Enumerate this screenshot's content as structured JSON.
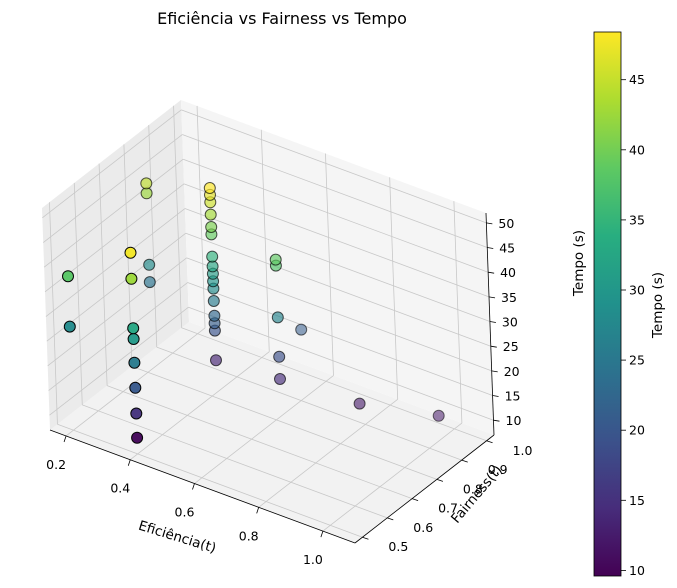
{
  "chart_data": {
    "type": "scatter",
    "projection": "3d",
    "title": "Eficiência vs Fairness vs Tempo",
    "xlabel": "Eficiência(t)",
    "ylabel": "Fairness(t)",
    "zlabel": "Tempo (s)",
    "xlim": [
      0.15,
      1.1
    ],
    "ylim": [
      0.47,
      1.03
    ],
    "zlim": [
      7,
      52
    ],
    "xticks": [
      "0.2",
      "0.4",
      "0.6",
      "0.8",
      "1.0"
    ],
    "yticks": [
      "0.5",
      "0.6",
      "0.7",
      "0.8",
      "0.9",
      "1.0"
    ],
    "zticks": [
      "10",
      "15",
      "20",
      "25",
      "30",
      "35",
      "40",
      "45",
      "50"
    ],
    "grid": true,
    "colormap": "viridis",
    "colorbar": {
      "label": "Tempo (s)",
      "range": [
        9.6,
        48.4
      ],
      "ticks": [
        "10",
        "15",
        "20",
        "25",
        "30",
        "35",
        "40",
        "45"
      ]
    },
    "points": [
      {
        "x": 0.4,
        "y": 0.5,
        "z": 10.3
      },
      {
        "x": 0.4,
        "y": 0.5,
        "z": 15.2
      },
      {
        "x": 0.4,
        "y": 0.5,
        "z": 20.4
      },
      {
        "x": 0.4,
        "y": 0.5,
        "z": 25.5
      },
      {
        "x": 0.4,
        "y": 0.5,
        "z": 30.3
      },
      {
        "x": 0.4,
        "y": 0.5,
        "z": 32.5
      },
      {
        "x": 0.4,
        "y": 0.5,
        "z": 42.5
      },
      {
        "x": 0.4,
        "y": 0.5,
        "z": 47.8
      },
      {
        "x": 0.2,
        "y": 0.5,
        "z": 28.0
      },
      {
        "x": 0.2,
        "y": 0.5,
        "z": 38.2
      },
      {
        "x": 0.4,
        "y": 0.82,
        "z": 13.5
      },
      {
        "x": 0.4,
        "y": 0.82,
        "z": 19.5
      },
      {
        "x": 0.4,
        "y": 0.82,
        "z": 21.0
      },
      {
        "x": 0.4,
        "y": 0.82,
        "z": 22.5
      },
      {
        "x": 0.4,
        "y": 0.82,
        "z": 25.5
      },
      {
        "x": 0.4,
        "y": 0.82,
        "z": 28.0
      },
      {
        "x": 0.4,
        "y": 0.82,
        "z": 29.5
      },
      {
        "x": 0.4,
        "y": 0.82,
        "z": 31.0
      },
      {
        "x": 0.4,
        "y": 0.82,
        "z": 32.5
      },
      {
        "x": 0.4,
        "y": 0.82,
        "z": 34.5
      },
      {
        "x": 0.4,
        "y": 0.82,
        "z": 39.0
      },
      {
        "x": 0.4,
        "y": 0.82,
        "z": 40.5
      },
      {
        "x": 0.4,
        "y": 0.82,
        "z": 43.0
      },
      {
        "x": 0.4,
        "y": 0.82,
        "z": 45.5
      },
      {
        "x": 0.4,
        "y": 0.82,
        "z": 47.0
      },
      {
        "x": 0.4,
        "y": 0.82,
        "z": 48.4
      },
      {
        "x": 0.2,
        "y": 0.82,
        "z": 24.5
      },
      {
        "x": 0.2,
        "y": 0.82,
        "z": 28.0
      },
      {
        "x": 0.2,
        "y": 0.82,
        "z": 42.5
      },
      {
        "x": 0.2,
        "y": 0.82,
        "z": 44.5
      },
      {
        "x": 0.6,
        "y": 0.82,
        "z": 14.5
      },
      {
        "x": 0.6,
        "y": 0.82,
        "z": 19.0
      },
      {
        "x": 0.6,
        "y": 0.82,
        "z": 27.0
      },
      {
        "x": 0.6,
        "y": 0.82,
        "z": 37.5
      },
      {
        "x": 0.6,
        "y": 0.82,
        "z": 38.7
      },
      {
        "x": 0.8,
        "y": 0.88,
        "z": 12.0
      },
      {
        "x": 1.0,
        "y": 0.94,
        "z": 12.0
      },
      {
        "x": 0.6,
        "y": 0.91,
        "z": 21.0
      }
    ]
  }
}
